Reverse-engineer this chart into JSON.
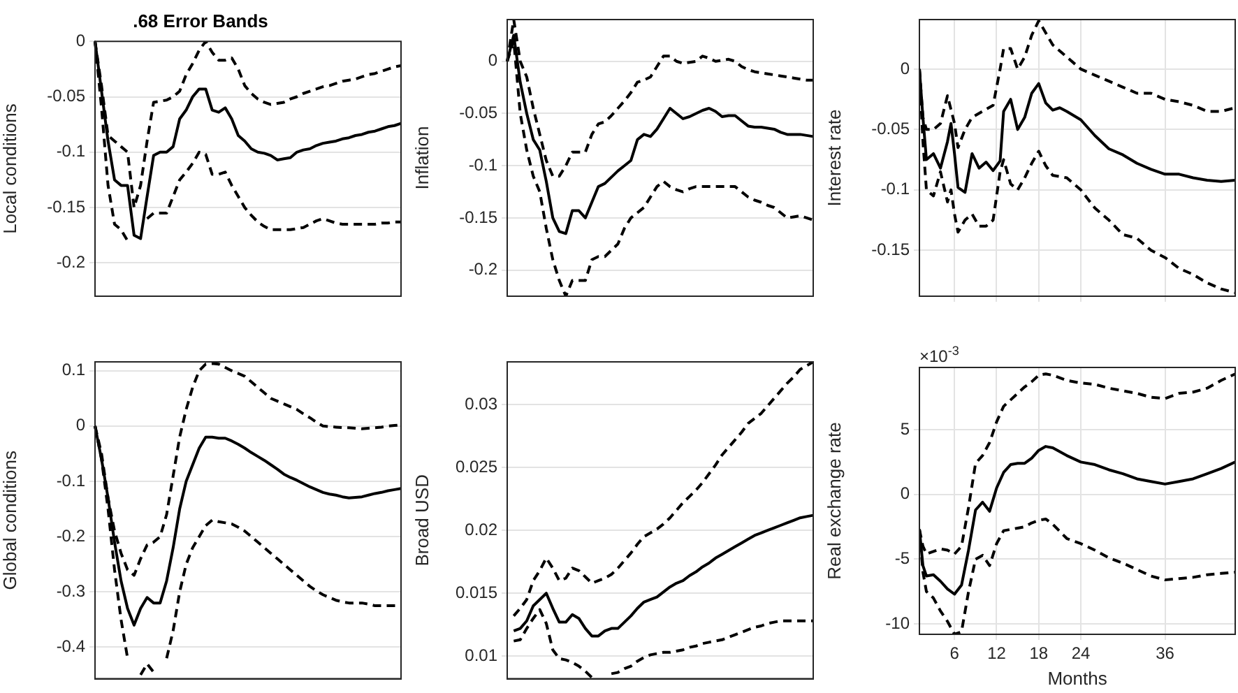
{
  "chart_data": [
    {
      "type": "line",
      "title": ".68 Error Bands",
      "ylabel": "Local conditions",
      "categories": [
        null,
        null,
        null,
        null,
        null,
        null,
        null,
        null,
        null,
        null,
        null,
        null,
        null,
        null,
        null,
        null,
        null,
        null,
        null,
        null,
        null,
        null,
        null,
        null,
        null,
        null,
        null,
        null,
        null,
        null,
        null,
        null,
        null,
        null,
        null,
        null,
        null,
        null,
        null,
        null,
        null,
        null,
        null,
        null,
        null,
        null,
        null,
        null
      ],
      "ylim": [
        -0.23,
        0
      ],
      "yticks": [
        -0.2,
        -0.15,
        -0.1,
        -0.05,
        0
      ],
      "grid": "y",
      "tick_labels": "y",
      "series": [
        {
          "color": "#000000",
          "line_style": "solid",
          "values": [
            0,
            -0.045,
            -0.09,
            -0.125,
            -0.13,
            -0.13,
            -0.175,
            -0.178,
            -0.14,
            -0.103,
            -0.1,
            -0.1,
            -0.095,
            -0.07,
            -0.062,
            -0.05,
            -0.043,
            -0.043,
            -0.062,
            -0.064,
            -0.06,
            -0.07,
            -0.085,
            -0.09,
            -0.097,
            -0.1,
            -0.101,
            -0.103,
            -0.107,
            -0.106,
            -0.105,
            -0.1,
            -0.098,
            -0.097,
            -0.094,
            -0.092,
            -0.091,
            -0.09,
            -0.088,
            -0.087,
            -0.085,
            -0.084,
            -0.082,
            -0.081,
            -0.079,
            -0.077,
            -0.076,
            -0.074
          ]
        },
        {
          "color": "#000000",
          "line_style": "dashed",
          "values": [
            0,
            -0.04,
            -0.085,
            -0.09,
            -0.095,
            -0.1,
            -0.15,
            -0.13,
            -0.09,
            -0.055,
            -0.054,
            -0.053,
            -0.05,
            -0.045,
            -0.03,
            -0.02,
            -0.008,
            0,
            -0.01,
            -0.017,
            -0.017,
            -0.015,
            -0.025,
            -0.04,
            -0.047,
            -0.052,
            -0.055,
            -0.057,
            -0.056,
            -0.055,
            -0.052,
            -0.05,
            -0.047,
            -0.045,
            -0.043,
            -0.041,
            -0.04,
            -0.038,
            -0.036,
            -0.035,
            -0.034,
            -0.032,
            -0.03,
            -0.029,
            -0.027,
            -0.025,
            -0.023,
            -0.022
          ]
        },
        {
          "color": "#000000",
          "line_style": "dashed",
          "values": [
            0,
            -0.06,
            -0.13,
            -0.165,
            -0.17,
            -0.18,
            null,
            null,
            -0.16,
            -0.155,
            -0.155,
            -0.155,
            -0.14,
            -0.125,
            -0.118,
            -0.11,
            -0.1,
            -0.102,
            -0.12,
            -0.12,
            -0.118,
            -0.13,
            -0.14,
            -0.15,
            -0.157,
            -0.163,
            -0.167,
            -0.17,
            -0.17,
            -0.17,
            -0.17,
            -0.169,
            -0.168,
            -0.165,
            -0.162,
            -0.16,
            -0.162,
            -0.164,
            -0.165,
            -0.165,
            -0.165,
            -0.165,
            -0.165,
            -0.165,
            -0.164,
            -0.164,
            -0.163,
            -0.163
          ]
        }
      ]
    },
    {
      "type": "line",
      "ylabel": "Inflation",
      "categories": [
        null,
        null,
        null,
        null,
        null,
        null,
        null,
        null,
        null,
        null,
        null,
        null,
        null,
        null,
        null,
        null,
        null,
        null,
        null,
        null,
        null,
        null,
        null,
        null,
        null,
        null,
        null,
        null,
        null,
        null,
        null,
        null,
        null,
        null,
        null,
        null,
        null,
        null,
        null,
        null,
        null,
        null,
        null,
        null,
        null,
        null,
        null,
        null
      ],
      "ylim": [
        -0.225,
        0.04
      ],
      "yticks": [
        -0.2,
        -0.15,
        -0.1,
        -0.05,
        0
      ],
      "grid": "y",
      "tick_labels": "y",
      "series": [
        {
          "color": "#000000",
          "line_style": "solid",
          "values": [
            0,
            0.025,
            -0.02,
            -0.05,
            -0.075,
            -0.085,
            -0.115,
            -0.15,
            -0.163,
            -0.165,
            -0.143,
            -0.143,
            -0.15,
            -0.135,
            -0.12,
            -0.117,
            -0.111,
            -0.105,
            -0.1,
            -0.095,
            -0.075,
            -0.07,
            -0.072,
            -0.065,
            -0.055,
            -0.045,
            -0.05,
            -0.055,
            -0.053,
            -0.05,
            -0.047,
            -0.045,
            -0.048,
            -0.053,
            -0.052,
            -0.052,
            -0.057,
            -0.062,
            -0.063,
            -0.063,
            -0.064,
            -0.065,
            -0.068,
            -0.07,
            -0.07,
            -0.07,
            -0.071,
            -0.072
          ]
        },
        {
          "color": "#000000",
          "line_style": "dashed",
          "values": [
            0,
            0.04,
            0,
            -0.015,
            -0.045,
            -0.07,
            -0.095,
            -0.11,
            -0.11,
            -0.1,
            -0.087,
            -0.087,
            -0.087,
            -0.07,
            -0.06,
            -0.058,
            -0.052,
            -0.045,
            -0.038,
            -0.03,
            -0.02,
            -0.018,
            -0.015,
            -0.005,
            0.005,
            0.005,
            0,
            -0.002,
            -0.001,
            0,
            0.005,
            0.003,
            0,
            0.001,
            0.002,
            0,
            -0.005,
            -0.008,
            -0.01,
            -0.011,
            -0.012,
            -0.013,
            -0.014,
            -0.015,
            -0.016,
            -0.017,
            -0.018,
            -0.018
          ]
        },
        {
          "color": "#000000",
          "line_style": "dashed",
          "values": [
            0,
            0.02,
            -0.05,
            -0.085,
            -0.11,
            -0.125,
            -0.16,
            -0.19,
            -0.21,
            -0.225,
            -0.21,
            -0.21,
            -0.21,
            -0.19,
            -0.187,
            -0.187,
            -0.181,
            -0.175,
            -0.16,
            -0.15,
            -0.145,
            -0.14,
            -0.13,
            -0.12,
            -0.115,
            -0.12,
            -0.123,
            -0.125,
            -0.122,
            -0.12,
            -0.12,
            -0.12,
            -0.12,
            -0.12,
            -0.12,
            -0.12,
            -0.125,
            -0.13,
            -0.133,
            -0.135,
            -0.138,
            -0.14,
            -0.145,
            -0.15,
            -0.149,
            -0.148,
            -0.15,
            -0.152
          ]
        }
      ]
    },
    {
      "type": "line",
      "ylabel": "Interest rate",
      "xlim": [
        1,
        46
      ],
      "xticks": [
        6,
        12,
        18,
        24,
        36
      ],
      "ylim": [
        -0.188,
        0.041
      ],
      "yticks": [
        -0.15,
        -0.1,
        -0.05,
        0
      ],
      "grid": true,
      "tick_labels": "y",
      "series": [
        {
          "color": "#000000",
          "line_style": "solid",
          "x": [
            1,
            1.5,
            2,
            3,
            4,
            5,
            5.5,
            6,
            6.5,
            7.5,
            8.5,
            9.5,
            10.5,
            11.5,
            12.5,
            13,
            14,
            15,
            16,
            17,
            18,
            19,
            20,
            21,
            22,
            24,
            26,
            28,
            30,
            32,
            34,
            36,
            38,
            40,
            42,
            44,
            46
          ],
          "values": [
            0,
            -0.04,
            -0.075,
            -0.07,
            -0.082,
            -0.06,
            -0.045,
            -0.07,
            -0.098,
            -0.102,
            -0.07,
            -0.082,
            -0.077,
            -0.084,
            -0.076,
            -0.035,
            -0.025,
            -0.05,
            -0.04,
            -0.02,
            -0.012,
            -0.028,
            -0.034,
            -0.032,
            -0.035,
            -0.042,
            -0.055,
            -0.066,
            -0.071,
            -0.078,
            -0.083,
            -0.087,
            -0.087,
            -0.09,
            -0.092,
            -0.093,
            -0.092
          ]
        },
        {
          "color": "#000000",
          "line_style": "dashed",
          "x": [
            1,
            1.5,
            2,
            3,
            4,
            5,
            6,
            6.5,
            7.5,
            8.5,
            10,
            11.5,
            12.5,
            13,
            14,
            15,
            16,
            17,
            18,
            19,
            20,
            22,
            24,
            26,
            28,
            30,
            32,
            34,
            36,
            38,
            40,
            42,
            44,
            46
          ],
          "values": [
            0,
            -0.04,
            -0.05,
            -0.05,
            -0.045,
            -0.022,
            -0.045,
            -0.065,
            -0.05,
            -0.04,
            -0.035,
            -0.03,
            0,
            0.017,
            0.017,
            0,
            0.01,
            0.028,
            0.04,
            0.03,
            0.02,
            0.01,
            0,
            -0.005,
            -0.01,
            -0.015,
            -0.02,
            -0.02,
            -0.025,
            -0.027,
            -0.03,
            -0.035,
            -0.035,
            -0.032
          ]
        },
        {
          "color": "#000000",
          "line_style": "dashed",
          "x": [
            1,
            1.5,
            2,
            3,
            4,
            5,
            5.5,
            6,
            6.5,
            7.5,
            8.5,
            9.5,
            10.5,
            11.5,
            12.5,
            13,
            14,
            15,
            16,
            17,
            18,
            19,
            20,
            22,
            24,
            26,
            28,
            30,
            32,
            34,
            36,
            38,
            40,
            42,
            44,
            46
          ],
          "values": [
            0,
            -0.06,
            -0.1,
            -0.105,
            -0.085,
            -0.11,
            -0.1,
            -0.12,
            -0.135,
            -0.125,
            -0.12,
            -0.13,
            -0.13,
            -0.125,
            -0.085,
            -0.075,
            -0.095,
            -0.1,
            -0.09,
            -0.078,
            -0.068,
            -0.08,
            -0.088,
            -0.09,
            -0.1,
            -0.115,
            -0.125,
            -0.137,
            -0.14,
            -0.15,
            -0.156,
            -0.165,
            -0.17,
            -0.177,
            -0.182,
            -0.185
          ]
        }
      ]
    },
    {
      "type": "line",
      "ylabel": "Global conditions",
      "categories": [
        null,
        null,
        null,
        null,
        null,
        null,
        null,
        null,
        null,
        null,
        null,
        null,
        null,
        null,
        null,
        null,
        null,
        null,
        null,
        null,
        null,
        null,
        null,
        null,
        null,
        null,
        null,
        null,
        null,
        null,
        null,
        null,
        null,
        null,
        null,
        null,
        null,
        null,
        null,
        null,
        null,
        null,
        null,
        null,
        null,
        null,
        null,
        null
      ],
      "ylim": [
        -0.457,
        0.116
      ],
      "yticks": [
        -0.4,
        -0.3,
        -0.2,
        -0.1,
        0,
        0.1
      ],
      "grid": "y",
      "tick_labels": "y",
      "series": [
        {
          "color": "#000000",
          "line_style": "solid",
          "values": [
            0,
            -0.06,
            -0.13,
            -0.21,
            -0.28,
            -0.33,
            -0.36,
            -0.33,
            -0.31,
            -0.32,
            -0.32,
            -0.28,
            -0.22,
            -0.15,
            -0.1,
            -0.07,
            -0.04,
            -0.02,
            -0.02,
            -0.022,
            -0.022,
            -0.027,
            -0.033,
            -0.04,
            -0.048,
            -0.055,
            -0.062,
            -0.07,
            -0.078,
            -0.087,
            -0.093,
            -0.098,
            -0.104,
            -0.11,
            -0.115,
            -0.12,
            -0.123,
            -0.125,
            -0.128,
            -0.13,
            -0.129,
            -0.128,
            -0.125,
            -0.122,
            -0.12,
            -0.117,
            -0.115,
            -0.113
          ]
        },
        {
          "color": "#000000",
          "line_style": "dashed",
          "values": [
            0,
            -0.05,
            -0.13,
            -0.19,
            -0.23,
            -0.26,
            -0.27,
            -0.24,
            -0.215,
            -0.21,
            -0.2,
            -0.16,
            -0.09,
            -0.02,
            0.03,
            0.07,
            0.1,
            0.112,
            0.113,
            0.112,
            0.106,
            0.1,
            0.095,
            0.09,
            0.08,
            0.07,
            0.06,
            0.05,
            0.045,
            0.04,
            0.035,
            0.03,
            0.022,
            0.015,
            0.007,
            0,
            -0.001,
            -0.002,
            -0.003,
            -0.003,
            -0.004,
            -0.005,
            -0.004,
            -0.003,
            -0.002,
            0,
            0.001,
            0.002
          ]
        },
        {
          "color": "#000000",
          "line_style": "dashed",
          "values": [
            0,
            -0.06,
            -0.15,
            -0.26,
            -0.35,
            -0.42,
            null,
            -0.45,
            -0.43,
            -0.445,
            null,
            -0.42,
            -0.37,
            -0.3,
            -0.25,
            -0.22,
            -0.2,
            -0.18,
            -0.17,
            -0.173,
            -0.175,
            -0.177,
            -0.183,
            -0.19,
            -0.2,
            -0.21,
            -0.22,
            -0.23,
            -0.24,
            -0.25,
            -0.26,
            -0.27,
            -0.28,
            -0.29,
            -0.298,
            -0.305,
            -0.31,
            -0.315,
            -0.318,
            -0.32,
            -0.32,
            -0.32,
            -0.322,
            -0.325,
            -0.325,
            -0.325,
            -0.325,
            -0.325
          ]
        }
      ]
    },
    {
      "type": "line",
      "ylabel": "Broad USD",
      "categories": [
        null,
        null,
        null,
        null,
        null,
        null,
        null,
        null,
        null,
        null,
        null,
        null,
        null,
        null,
        null,
        null,
        null,
        null,
        null,
        null,
        null,
        null,
        null,
        null,
        null,
        null,
        null,
        null,
        null,
        null,
        null,
        null,
        null,
        null,
        null,
        null,
        null,
        null,
        null,
        null,
        null,
        null,
        null,
        null,
        null,
        null,
        null,
        null
      ],
      "ylim": [
        0.0082,
        0.0334
      ],
      "yticks": [
        0.01,
        0.015,
        0.02,
        0.025,
        0.03
      ],
      "grid": "y",
      "tick_labels": "y",
      "series": [
        {
          "color": "#000000",
          "line_style": "solid",
          "values": [
            null,
            0.012,
            0.0122,
            0.0128,
            0.014,
            0.0145,
            0.015,
            0.0138,
            0.0127,
            0.0127,
            0.0133,
            0.013,
            0.0122,
            0.0116,
            0.0116,
            0.012,
            0.0122,
            0.0122,
            0.0127,
            0.0132,
            0.0138,
            0.0143,
            0.0145,
            0.0147,
            0.0151,
            0.0155,
            0.0158,
            0.016,
            0.0164,
            0.0167,
            0.0171,
            0.0174,
            0.0178,
            0.0181,
            0.0184,
            0.0187,
            0.019,
            0.0193,
            0.0196,
            0.0198,
            0.02,
            0.0202,
            0.0204,
            0.0206,
            0.0208,
            0.021,
            0.0211,
            0.0212
          ]
        },
        {
          "color": "#000000",
          "line_style": "dashed",
          "values": [
            null,
            0.0132,
            0.0138,
            0.0145,
            0.016,
            0.0168,
            0.0178,
            0.017,
            0.016,
            0.0162,
            0.017,
            0.0168,
            0.0163,
            0.0158,
            0.016,
            0.0162,
            0.0165,
            0.017,
            0.0176,
            0.0182,
            0.0189,
            0.0195,
            0.0198,
            0.0201,
            0.0205,
            0.021,
            0.0216,
            0.0222,
            0.0227,
            0.0232,
            0.0238,
            0.0245,
            0.0252,
            0.026,
            0.0266,
            0.0272,
            0.0278,
            0.0285,
            0.0289,
            0.0293,
            0.0299,
            0.0305,
            0.0311,
            0.0317,
            0.0322,
            0.0328,
            0.0331,
            0.0334
          ]
        },
        {
          "color": "#000000",
          "line_style": "dashed",
          "values": [
            null,
            0.0112,
            0.0113,
            0.0122,
            0.013,
            0.0137,
            0.0126,
            0.0105,
            0.0098,
            0.0097,
            0.0095,
            0.0092,
            0.0088,
            0.0083,
            null,
            null,
            0.0086,
            0.0087,
            0.009,
            0.0092,
            0.0096,
            0.0099,
            0.0101,
            0.0102,
            0.0103,
            0.0103,
            0.0104,
            0.0105,
            0.0107,
            0.0108,
            0.011,
            0.0111,
            0.0112,
            0.0113,
            0.0115,
            0.0117,
            0.0119,
            0.0121,
            0.0123,
            0.0124,
            0.0126,
            0.0127,
            0.0128,
            0.0128,
            0.0128,
            0.0128,
            0.0128,
            0.0128
          ]
        }
      ]
    },
    {
      "type": "line",
      "ylabel": "Real exchange rate",
      "xlabel": "Months",
      "annotations": [
        "×10$^{-3}$"
      ],
      "xlim": [
        1,
        46
      ],
      "xticks": [
        6,
        12,
        18,
        24,
        36
      ],
      "ylim": [
        -10.8,
        9.8
      ],
      "yticks": [
        -10,
        -5,
        0,
        5
      ],
      "grid": true,
      "series": [
        {
          "color": "#000000",
          "line_style": "solid",
          "x": [
            1,
            1.5,
            2,
            3,
            4,
            5,
            6,
            7,
            8,
            9,
            10,
            11,
            12,
            13,
            14,
            15,
            16,
            17,
            18,
            19,
            20,
            22,
            24,
            26,
            28,
            30,
            32,
            34,
            36,
            38,
            40,
            42,
            44,
            46
          ],
          "values": [
            -2.7,
            -5.5,
            -6.3,
            -6.2,
            -6.7,
            -7.3,
            -7.7,
            -7,
            -4.3,
            -1.2,
            -0.6,
            -1.3,
            0.5,
            1.7,
            2.3,
            2.4,
            2.4,
            2.8,
            3.4,
            3.7,
            3.6,
            3,
            2.5,
            2.3,
            1.9,
            1.6,
            1.2,
            1,
            0.8,
            1,
            1.2,
            1.6,
            2,
            2.5
          ]
        },
        {
          "color": "#000000",
          "line_style": "dashed",
          "x": [
            1,
            1.5,
            2,
            3,
            4,
            5,
            6,
            7,
            8,
            9,
            10,
            11,
            12,
            13,
            14,
            15,
            16,
            17,
            18,
            19,
            20,
            22,
            24,
            26,
            28,
            30,
            32,
            34,
            36,
            38,
            40,
            42,
            44,
            46
          ],
          "values": [
            -2.7,
            -4,
            -4.6,
            -4.4,
            -4.2,
            -4.3,
            -4.6,
            -4,
            -1,
            2.4,
            3,
            4,
            5.6,
            6.8,
            7.3,
            7.8,
            8.3,
            8.7,
            9.2,
            9.3,
            9.2,
            8.8,
            8.6,
            8.5,
            8.2,
            8,
            7.8,
            7.5,
            7.4,
            7.8,
            7.9,
            8.2,
            8.8,
            9.3
          ]
        },
        {
          "color": "#000000",
          "line_style": "dashed",
          "x": [
            1,
            1.5,
            2,
            3,
            4,
            5,
            6,
            7,
            8,
            9,
            10,
            11,
            12,
            13,
            14,
            15,
            16,
            17,
            18,
            19,
            20,
            22,
            24,
            26,
            28,
            30,
            32,
            34,
            36,
            38,
            40,
            42,
            44,
            46
          ],
          "values": [
            -2.7,
            -6,
            -7.5,
            -8,
            -9,
            -9.8,
            -10.8,
            -10.6,
            -7.5,
            -5,
            -4.7,
            -5.5,
            -3.8,
            -2.8,
            -2.7,
            -2.6,
            -2.5,
            -2.2,
            -2,
            -1.9,
            -2.3,
            -3.4,
            -3.8,
            -4.3,
            -4.9,
            -5.3,
            -5.8,
            -6.3,
            -6.6,
            -6.5,
            -6.4,
            -6.2,
            -6.1,
            -6
          ]
        }
      ]
    }
  ]
}
